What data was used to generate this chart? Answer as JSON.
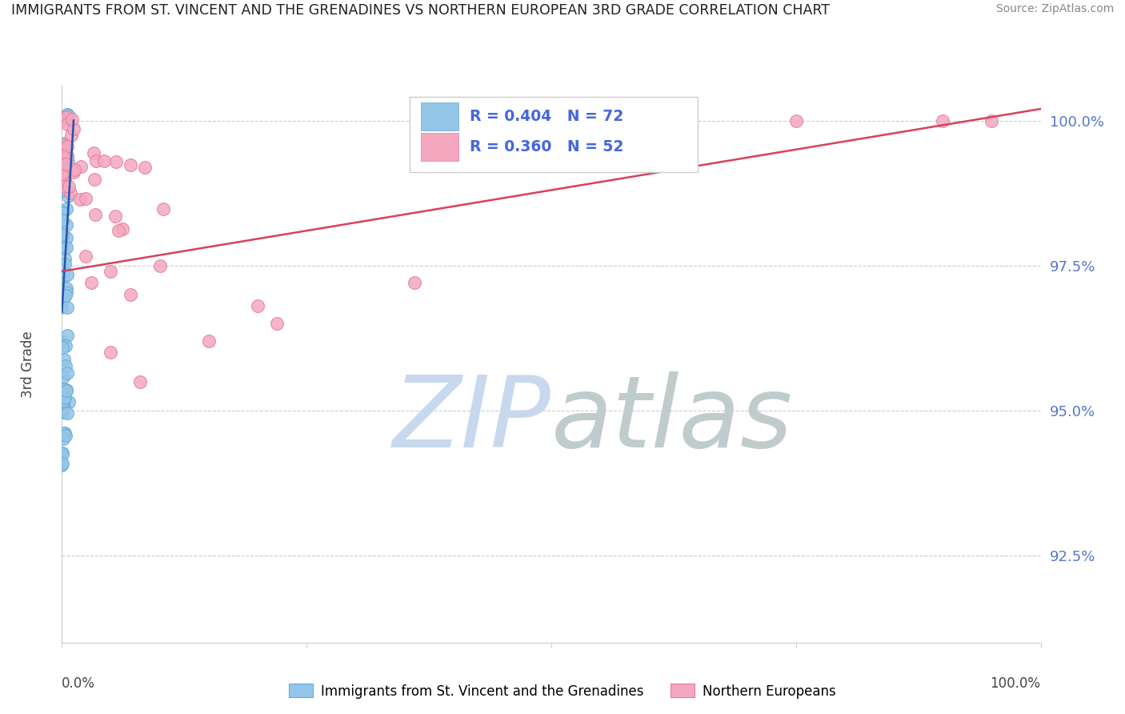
{
  "title": "IMMIGRANTS FROM ST. VINCENT AND THE GRENADINES VS NORTHERN EUROPEAN 3RD GRADE CORRELATION CHART",
  "source": "Source: ZipAtlas.com",
  "ylabel": "3rd Grade",
  "ytick_labels": [
    "92.5%",
    "95.0%",
    "97.5%",
    "100.0%"
  ],
  "ytick_values": [
    0.925,
    0.95,
    0.975,
    1.0
  ],
  "xlim": [
    0.0,
    1.0
  ],
  "ylim": [
    0.91,
    1.005
  ],
  "legend_blue_label": "Immigrants from St. Vincent and the Grenadines",
  "legend_pink_label": "Northern Europeans",
  "R_blue": 0.404,
  "N_blue": 72,
  "R_pink": 0.36,
  "N_pink": 52,
  "blue_color": "#92C5E8",
  "pink_color": "#F4A8C0",
  "blue_edge": "#6AAAD4",
  "pink_edge": "#E8799A",
  "trend_blue_color": "#2255AA",
  "trend_pink_color": "#D94060",
  "watermark_zip": "ZIP",
  "watermark_atlas": "atlas",
  "watermark_color_zip": "#C8D8EE",
  "watermark_color_atlas": "#C0CCCC",
  "grid_color": "#CCCCCC",
  "background_color": "#FFFFFF",
  "legend_text_color": "#4466DD",
  "tick_color": "#5577CC",
  "source_color": "#888888",
  "title_color": "#222222",
  "ylabel_color": "#444444",
  "xlabel_color": "#444444"
}
